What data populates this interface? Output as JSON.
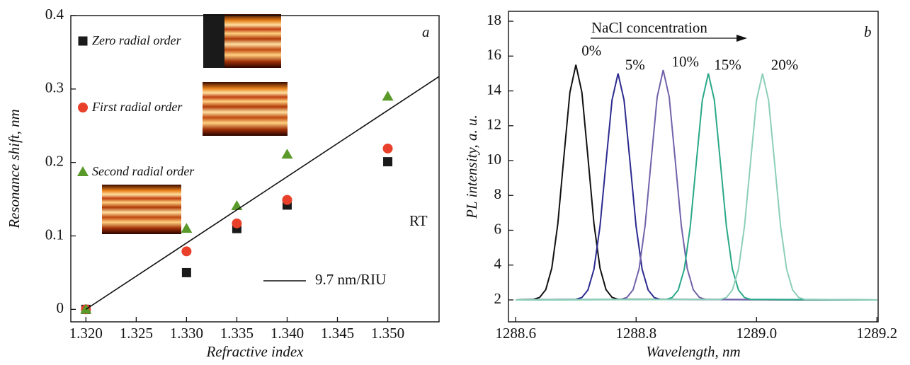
{
  "chart_data": [
    {
      "type": "scatter",
      "x_label": "Refractive index",
      "y_label": "Resonance shift, nm",
      "annotations": [
        "a",
        "RT"
      ],
      "x": [
        1.32,
        1.33,
        1.335,
        1.34,
        1.35
      ],
      "series": [
        {
          "name": "Zero radial order",
          "marker": "square",
          "color": "#1a1a1a",
          "values": [
            0,
            0.05,
            0.11,
            0.142,
            0.201
          ]
        },
        {
          "name": "First radial order",
          "marker": "circle",
          "color": "#e8402a",
          "values": [
            0,
            0.079,
            0.117,
            0.149,
            0.219
          ]
        },
        {
          "name": "Second radial order",
          "marker": "triangle",
          "color": "#5a9a2a",
          "values": [
            0,
            0.11,
            0.141,
            0.211,
            0.29
          ]
        },
        {
          "name": "9.7 nm/RIU",
          "type": "line",
          "color": "#111111",
          "x": [
            1.32,
            1.3551
          ],
          "values": [
            0,
            0.317
          ]
        }
      ],
      "xlim": [
        1.3185,
        1.3551
      ],
      "ylim": [
        -0.017,
        0.4
      ],
      "xticks": [
        {
          "value": 1.32,
          "label": "1.320"
        },
        {
          "value": 1.325,
          "label": "1.325"
        },
        {
          "value": 1.33,
          "label": "1.330"
        },
        {
          "value": 1.335,
          "label": "1.335"
        },
        {
          "value": 1.34,
          "label": "1.340"
        },
        {
          "value": 1.345,
          "label": "1.345"
        },
        {
          "value": 1.35,
          "label": "1.350"
        }
      ],
      "yticks": [
        0,
        0.1,
        0.2,
        0.3,
        0.4
      ],
      "grid": false
    },
    {
      "type": "line",
      "x_label": "Wavelength, nm",
      "y_label": "PL intensity, a. u.",
      "annotations": [
        "NaCl concentration",
        "b"
      ],
      "series": [
        {
          "name": "0%",
          "color": "#111111",
          "x": [
            1288.6,
            1288.63,
            1288.64,
            1288.65,
            1288.66,
            1288.67,
            1288.68,
            1288.69,
            1288.7,
            1288.71,
            1288.72,
            1288.73,
            1288.74,
            1288.75,
            1288.76,
            1288.77,
            1289.2
          ],
          "values": [
            2,
            2.03,
            2.15,
            2.59,
            3.83,
            6.38,
            10.19,
            13.91,
            15.5,
            13.91,
            10.19,
            6.38,
            3.83,
            2.59,
            2.15,
            2.03,
            2
          ]
        },
        {
          "name": "5%",
          "color": "#2c2a8e",
          "x": [
            1288.6,
            1288.7,
            1288.71,
            1288.72,
            1288.73,
            1288.74,
            1288.75,
            1288.76,
            1288.77,
            1288.78,
            1288.79,
            1288.8,
            1288.81,
            1288.82,
            1288.83,
            1288.84,
            1289.2
          ],
          "values": [
            2,
            2.03,
            2.14,
            2.57,
            3.76,
            6.22,
            9.88,
            13.47,
            15,
            13.47,
            9.88,
            6.22,
            3.76,
            2.57,
            2.14,
            2.03,
            2
          ]
        },
        {
          "name": "10%",
          "color": "#7262aa",
          "x": [
            1288.6,
            1288.775,
            1288.785,
            1288.795,
            1288.805,
            1288.815,
            1288.825,
            1288.835,
            1288.845,
            1288.855,
            1288.865,
            1288.875,
            1288.885,
            1288.895,
            1288.905,
            1288.915,
            1289.2
          ],
          "values": [
            2,
            2.03,
            2.15,
            2.58,
            3.79,
            6.29,
            10.01,
            13.65,
            15.2,
            13.65,
            10.01,
            6.29,
            3.79,
            2.58,
            2.15,
            2.03,
            2
          ]
        },
        {
          "name": "15%",
          "color": "#2aa888",
          "x": [
            1288.6,
            1288.85,
            1288.86,
            1288.87,
            1288.88,
            1288.89,
            1288.9,
            1288.91,
            1288.92,
            1288.93,
            1288.94,
            1288.95,
            1288.96,
            1288.97,
            1288.98,
            1288.99,
            1289.2
          ],
          "values": [
            2,
            2.03,
            2.14,
            2.57,
            3.76,
            6.22,
            9.88,
            13.47,
            15,
            13.47,
            9.88,
            6.22,
            3.76,
            2.57,
            2.14,
            2.03,
            2
          ]
        },
        {
          "name": "20%",
          "color": "#8ccfb6",
          "x": [
            1288.6,
            1288.94,
            1288.95,
            1288.96,
            1288.97,
            1288.98,
            1288.99,
            1289,
            1289.01,
            1289.02,
            1289.03,
            1289.04,
            1289.05,
            1289.06,
            1289.07,
            1289.08,
            1289.2
          ],
          "values": [
            2,
            2.03,
            2.14,
            2.57,
            3.76,
            6.22,
            9.88,
            13.47,
            15,
            13.47,
            9.88,
            6.22,
            3.76,
            2.57,
            2.14,
            2.03,
            2
          ]
        }
      ],
      "xlim": [
        1288.588,
        1289.202
      ],
      "ylim": [
        0.74,
        18.57
      ],
      "xticks": [
        1288.6,
        1288.8,
        {
          "value": 1289,
          "label": "1289.0"
        },
        1289.2
      ],
      "yticks": [
        2,
        4,
        6,
        8,
        10,
        12,
        14,
        16,
        18
      ],
      "grid": false
    }
  ]
}
